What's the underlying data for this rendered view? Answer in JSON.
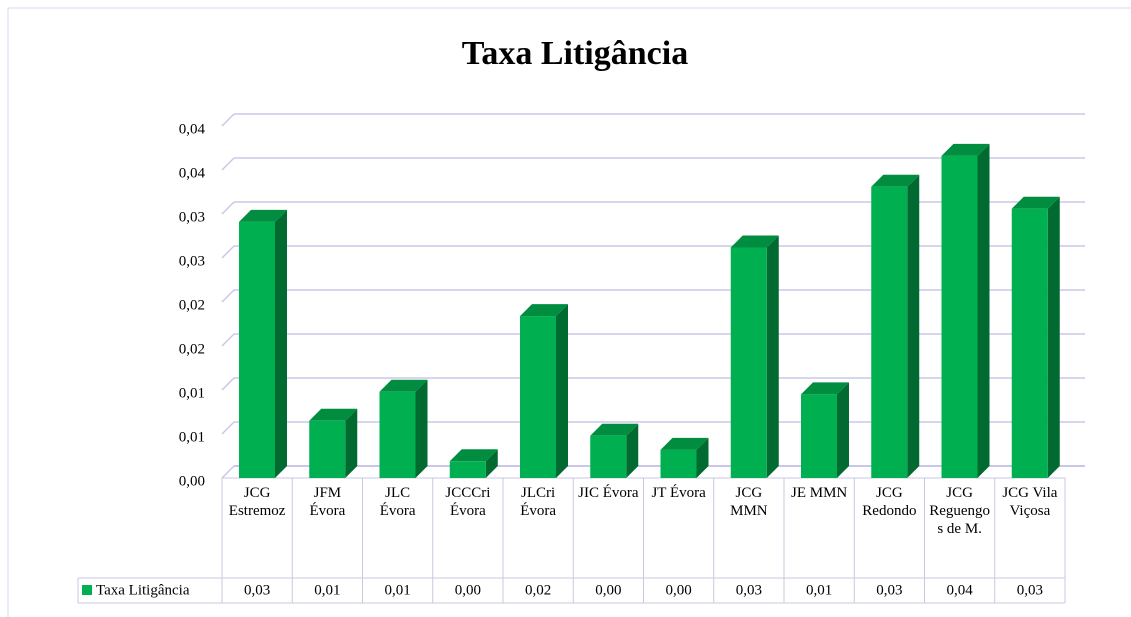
{
  "chart_data": {
    "type": "bar3d",
    "title": "Taxa Litigância",
    "categories": [
      "JCG Estremoz",
      "JFM Évora",
      "JLC Évora",
      "JCCCri Évora",
      "JLCri Évora",
      "JIC Évora",
      "JT Évora",
      "JCG MMN",
      "JE MMN",
      "JCG Redondo",
      "JCG Reguengos de M.",
      "JCG Vila Viçosa"
    ],
    "series": [
      {
        "name": "Taxa Litigância",
        "color": "#00b050",
        "values": [
          0.0291,
          0.0065,
          0.0098,
          0.0019,
          0.0184,
          0.0048,
          0.0032,
          0.0262,
          0.0095,
          0.0331,
          0.0366,
          0.0306
        ],
        "value_labels": [
          "0,03",
          "0,01",
          "0,01",
          "0,00",
          "0,02",
          "0,00",
          "0,00",
          "0,03",
          "0,01",
          "0,03",
          "0,04",
          "0,03"
        ]
      }
    ],
    "ylim": [
      0,
      0.04
    ],
    "yticks": [
      {
        "value": 0,
        "label": "0,00"
      },
      {
        "value": 0.005,
        "label": "0,01"
      },
      {
        "value": 0.01,
        "label": "0,01"
      },
      {
        "value": 0.015,
        "label": "0,02"
      },
      {
        "value": 0.02,
        "label": "0,02"
      },
      {
        "value": 0.025,
        "label": "0,03"
      },
      {
        "value": 0.03,
        "label": "0,03"
      },
      {
        "value": 0.035,
        "label": "0,04"
      },
      {
        "value": 0.04,
        "label": "0,04"
      }
    ],
    "grid": true,
    "legend": "table"
  }
}
